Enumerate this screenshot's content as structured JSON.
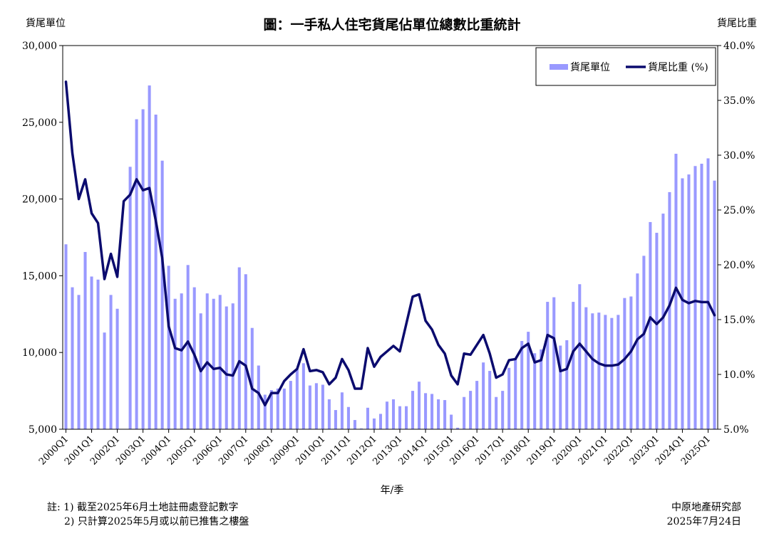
{
  "chart_data": {
    "type": "bar+line",
    "title": "圖：一手私人住宅貨尾佔單位總數比重統計",
    "ylabel_left": "貨尾單位",
    "ylabel_right": "貨尾比重",
    "xlabel": "年/季",
    "ylim_left": [
      5000,
      30000
    ],
    "yticks_left": [
      "5,000",
      "10,000",
      "15,000",
      "20,000",
      "25,000",
      "30,000"
    ],
    "ylim_right": [
      5,
      40
    ],
    "yticks_right": [
      "5.0%",
      "10.0%",
      "15.0%",
      "20.0%",
      "25.0%",
      "30.0%",
      "35.0%",
      "40.0%"
    ],
    "legend_position": "top-right",
    "x_tick_labels": [
      "2000Q1",
      "2001Q1",
      "2002Q1",
      "2003Q1",
      "2004Q1",
      "2005Q1",
      "2006Q1",
      "2007Q1",
      "2008Q1",
      "2009Q1",
      "2010Q1",
      "2011Q1",
      "2012Q1",
      "2013Q1",
      "2014Q1",
      "2015Q1",
      "2016Q1",
      "2017Q1",
      "2018Q1",
      "2019Q1",
      "2020Q1",
      "2021Q1",
      "2022Q1",
      "2023Q1",
      "2024Q1",
      "2025Q1"
    ],
    "x_start": "2000Q1",
    "x_end": "2025Q2",
    "series": [
      {
        "name": "貨尾單位",
        "type": "bar",
        "color": "#9999ff",
        "values": [
          17050,
          14250,
          13750,
          16550,
          14950,
          14750,
          11300,
          13750,
          12850,
          null,
          22100,
          25200,
          25850,
          27400,
          25500,
          22500,
          15650,
          13500,
          13850,
          15700,
          14250,
          12550,
          13850,
          13500,
          13750,
          13000,
          13200,
          15550,
          15100,
          11600,
          9150,
          7250,
          7550,
          7650,
          7650,
          8150,
          8900,
          9300,
          7850,
          8000,
          7900,
          6950,
          6250,
          7400,
          6450,
          5600,
          5050,
          6400,
          5700,
          6000,
          6800,
          6950,
          6500,
          6500,
          7500,
          8100,
          7350,
          7300,
          6950,
          6900,
          5950,
          5100,
          7100,
          7500,
          8150,
          9350,
          8800,
          7100,
          7500,
          9000,
          9550,
          10750,
          11350,
          9950,
          10200,
          13300,
          13600,
          10450,
          10800,
          13300,
          14450,
          12950,
          12550,
          12600,
          12450,
          12250,
          12450,
          13550,
          13650,
          15150,
          16300,
          18500,
          17800,
          19050,
          20450,
          22950,
          21350,
          21600,
          22150,
          22300,
          22650,
          21200
        ]
      },
      {
        "name": "貨尾比重 (%)",
        "type": "line",
        "color": "#0b0b6e",
        "values": [
          36.7,
          30.2,
          26.0,
          27.8,
          24.7,
          23.8,
          18.7,
          21.0,
          18.9,
          25.8,
          26.4,
          27.8,
          26.8,
          27.0,
          24.0,
          20.6,
          14.4,
          12.4,
          12.2,
          13.0,
          11.8,
          10.3,
          11.1,
          10.5,
          10.6,
          10.0,
          9.9,
          11.2,
          10.8,
          8.7,
          8.3,
          7.2,
          8.3,
          8.3,
          9.4,
          10.0,
          10.5,
          12.3,
          10.3,
          10.4,
          10.2,
          9.1,
          9.7,
          11.4,
          10.4,
          8.7,
          8.7,
          12.4,
          10.7,
          11.6,
          12.1,
          12.6,
          12.1,
          14.6,
          17.1,
          17.3,
          14.9,
          14.1,
          12.7,
          11.9,
          9.9,
          9.1,
          11.9,
          11.8,
          12.7,
          13.6,
          11.9,
          9.7,
          10.0,
          11.3,
          11.4,
          12.4,
          12.8,
          11.1,
          11.3,
          13.6,
          13.3,
          10.3,
          10.5,
          12.1,
          12.8,
          12.1,
          11.4,
          11.0,
          10.8,
          10.8,
          10.9,
          11.4,
          12.1,
          13.2,
          13.7,
          15.2,
          14.6,
          15.2,
          16.3,
          17.9,
          16.8,
          16.5,
          16.7,
          16.6,
          16.6,
          15.4
        ]
      }
    ]
  },
  "notes": {
    "line1": "註: 1) 截至2025年6月土地註冊處登記數字",
    "line2": "2) 只計算2025年5月或以前已推售之樓盤"
  },
  "source": {
    "org": "中原地產研究部",
    "date": "2025年7月24日"
  }
}
